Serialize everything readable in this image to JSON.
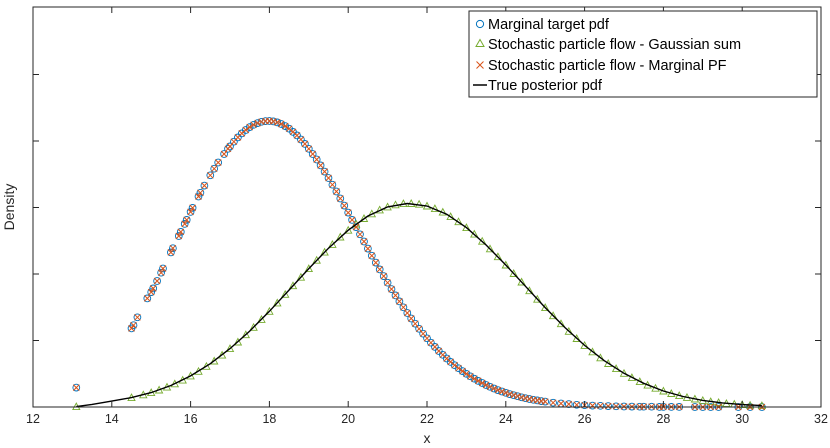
{
  "chart_data": {
    "type": "scatter",
    "title": "",
    "xlabel": "x",
    "ylabel": "Density",
    "xlim": [
      12,
      32
    ],
    "ylim": [
      0,
      0.305
    ],
    "xticks": [
      "12",
      "14",
      "16",
      "18",
      "20",
      "22",
      "24",
      "26",
      "28",
      "30",
      "32"
    ],
    "yticks_count": 6,
    "yticks_labeled": false,
    "box": true,
    "grid": false,
    "legend_position": "top-right",
    "series": [
      {
        "name": "Marginal target pdf",
        "marker": "circle",
        "color": "#0072BD",
        "x": [
          13.1,
          14.5,
          14.55,
          14.65,
          14.9,
          15.0,
          15.05,
          15.15,
          15.25,
          15.3,
          15.5,
          15.55,
          15.7,
          15.75,
          15.85,
          15.9,
          16.0,
          16.05,
          16.2,
          16.25,
          16.35,
          16.5,
          16.6,
          16.7,
          16.85,
          16.95,
          17.0,
          17.1,
          17.2,
          17.3,
          17.4,
          17.5,
          17.6,
          17.7,
          17.8,
          17.9,
          18.0,
          18.1,
          18.2,
          18.3,
          18.4,
          18.5,
          18.6,
          18.7,
          18.8,
          18.9,
          19.0,
          19.1,
          19.2,
          19.3,
          19.4,
          19.5,
          19.6,
          19.7,
          19.8,
          19.9,
          20.0,
          20.1,
          20.2,
          20.3,
          20.4,
          20.5,
          20.6,
          20.7,
          20.8,
          20.9,
          21.0,
          21.1,
          21.2,
          21.3,
          21.4,
          21.5,
          21.6,
          21.7,
          21.8,
          21.9,
          22.0,
          22.1,
          22.2,
          22.3,
          22.4,
          22.5,
          22.6,
          22.7,
          22.8,
          22.9,
          23.0,
          23.1,
          23.2,
          23.3,
          23.4,
          23.5,
          23.6,
          23.7,
          23.8,
          23.9,
          24.0,
          24.1,
          24.2,
          24.3,
          24.4,
          24.5,
          24.6,
          24.7,
          24.8,
          24.9,
          25.0,
          25.2,
          25.4,
          25.6,
          25.8,
          26.0,
          26.2,
          26.4,
          26.6,
          26.8,
          27.0,
          27.2,
          27.4,
          27.5,
          27.7,
          27.9,
          28.0,
          28.2,
          28.4,
          28.8,
          29.0,
          29.2,
          29.4,
          29.9,
          30.2,
          30.5
        ],
        "y": [
          0.0148,
          0.0599,
          0.0624,
          0.0684,
          0.0828,
          0.0876,
          0.0904,
          0.0961,
          0.1024,
          0.1056,
          0.1179,
          0.1211,
          0.1304,
          0.1335,
          0.1396,
          0.1427,
          0.1488,
          0.1518,
          0.1605,
          0.1633,
          0.1688,
          0.1767,
          0.1817,
          0.1864,
          0.1929,
          0.1969,
          0.1987,
          0.2023,
          0.2056,
          0.2086,
          0.2112,
          0.2134,
          0.2152,
          0.2165,
          0.2175,
          0.218,
          0.2181,
          0.2178,
          0.217,
          0.2158,
          0.2142,
          0.2122,
          0.2098,
          0.2071,
          0.204,
          0.2006,
          0.1969,
          0.1929,
          0.1887,
          0.1842,
          0.1795,
          0.1746,
          0.1695,
          0.1643,
          0.159,
          0.1536,
          0.1482,
          0.1427,
          0.1372,
          0.1317,
          0.1262,
          0.1208,
          0.1154,
          0.1101,
          0.1049,
          0.0998,
          0.0948,
          0.0899,
          0.0851,
          0.0805,
          0.076,
          0.0717,
          0.0675,
          0.0635,
          0.0596,
          0.0559,
          0.0524,
          0.049,
          0.0458,
          0.0427,
          0.0398,
          0.037,
          0.0344,
          0.0319,
          0.0296,
          0.0274,
          0.0253,
          0.0234,
          0.0216,
          0.0199,
          0.0183,
          0.0168,
          0.0154,
          0.0141,
          0.0129,
          0.0118,
          0.0108,
          0.0098,
          0.009,
          0.0082,
          0.0074,
          0.0067,
          0.0061,
          0.0055,
          0.005,
          0.0045,
          0.0041,
          0.0033,
          0.0027,
          0.0022,
          0.0017,
          0.0014,
          0.0011,
          0.0009,
          0.0007,
          0.0005,
          0.0004,
          0.0003,
          0.0002,
          0.0002,
          0.0002,
          0.0001,
          0.0001,
          0.0001,
          0.0001,
          0.0,
          0.0,
          0.0,
          0.0,
          0.0,
          0.0,
          0.0
        ]
      },
      {
        "name": "Stochastic particle flow - Gaussian sum",
        "marker": "triangle",
        "color": "#77AC30",
        "x": [
          13.1,
          14.5,
          14.8,
          15.0,
          15.2,
          15.4,
          15.6,
          15.8,
          16.0,
          16.2,
          16.4,
          16.6,
          16.8,
          17.0,
          17.2,
          17.4,
          17.6,
          17.8,
          18.0,
          18.2,
          18.4,
          18.6,
          18.8,
          19.0,
          19.2,
          19.4,
          19.6,
          19.8,
          20.0,
          20.2,
          20.4,
          20.6,
          20.8,
          21.0,
          21.2,
          21.4,
          21.6,
          21.8,
          22.0,
          22.2,
          22.4,
          22.6,
          22.8,
          23.0,
          23.2,
          23.4,
          23.6,
          23.8,
          24.0,
          24.2,
          24.4,
          24.6,
          24.8,
          25.0,
          25.2,
          25.4,
          25.6,
          25.8,
          26.0,
          26.2,
          26.4,
          26.6,
          26.8,
          27.0,
          27.2,
          27.4,
          27.6,
          27.8,
          28.0,
          28.2,
          28.4,
          28.6,
          28.8,
          29.0,
          29.2,
          29.4,
          29.6,
          29.8,
          30.0,
          30.2,
          30.5
        ],
        "y": [
          0.0003,
          0.0072,
          0.0093,
          0.011,
          0.013,
          0.0152,
          0.0177,
          0.0205,
          0.0237,
          0.0272,
          0.031,
          0.0351,
          0.0396,
          0.0445,
          0.0496,
          0.0551,
          0.0608,
          0.0668,
          0.073,
          0.0794,
          0.0859,
          0.0925,
          0.099,
          0.1055,
          0.1119,
          0.1181,
          0.124,
          0.1296,
          0.1348,
          0.1395,
          0.1437,
          0.1473,
          0.1503,
          0.1526,
          0.1542,
          0.1551,
          0.1552,
          0.1546,
          0.1533,
          0.1513,
          0.1486,
          0.1452,
          0.1413,
          0.1368,
          0.1318,
          0.1264,
          0.1206,
          0.1146,
          0.1083,
          0.1018,
          0.0953,
          0.0887,
          0.0822,
          0.0758,
          0.0696,
          0.0635,
          0.0577,
          0.0522,
          0.047,
          0.0421,
          0.0375,
          0.0332,
          0.0293,
          0.0257,
          0.0224,
          0.0194,
          0.0167,
          0.0143,
          0.0122,
          0.0103,
          0.0087,
          0.0073,
          0.0061,
          0.005,
          0.0041,
          0.0034,
          0.0027,
          0.0022,
          0.0018,
          0.0014,
          0.0011
        ]
      },
      {
        "name": "Stochastic particle flow - Marginal PF",
        "marker": "x",
        "color": "#D95319",
        "x": [
          13.1,
          14.5,
          14.55,
          14.65,
          14.9,
          15.0,
          15.05,
          15.15,
          15.25,
          15.3,
          15.5,
          15.55,
          15.7,
          15.75,
          15.85,
          15.9,
          16.0,
          16.05,
          16.2,
          16.25,
          16.35,
          16.5,
          16.6,
          16.7,
          16.85,
          16.95,
          17.0,
          17.1,
          17.2,
          17.3,
          17.4,
          17.5,
          17.6,
          17.7,
          17.8,
          17.9,
          18.0,
          18.1,
          18.2,
          18.3,
          18.4,
          18.5,
          18.6,
          18.7,
          18.8,
          18.9,
          19.0,
          19.1,
          19.2,
          19.3,
          19.4,
          19.5,
          19.6,
          19.7,
          19.8,
          19.9,
          20.0,
          20.1,
          20.2,
          20.3,
          20.4,
          20.5,
          20.6,
          20.7,
          20.8,
          20.9,
          21.0,
          21.1,
          21.2,
          21.3,
          21.4,
          21.5,
          21.6,
          21.7,
          21.8,
          21.9,
          22.0,
          22.1,
          22.2,
          22.3,
          22.4,
          22.5,
          22.6,
          22.7,
          22.8,
          22.9,
          23.0,
          23.1,
          23.2,
          23.3,
          23.4,
          23.5,
          23.6,
          23.7,
          23.8,
          23.9,
          24.0,
          24.1,
          24.2,
          24.3,
          24.4,
          24.5,
          24.6,
          24.7,
          24.8,
          24.9,
          25.0,
          25.2,
          25.4,
          25.6,
          25.8,
          26.0,
          26.2,
          26.4,
          26.6,
          26.8,
          27.0,
          27.2,
          27.4,
          27.5,
          27.7,
          27.9,
          28.0,
          28.2,
          28.4,
          28.8,
          29.0,
          29.2,
          29.4,
          29.9,
          30.2,
          30.5
        ],
        "y": [
          0.0148,
          0.0599,
          0.0624,
          0.0684,
          0.0828,
          0.0876,
          0.0904,
          0.0961,
          0.1024,
          0.1056,
          0.1179,
          0.1211,
          0.1304,
          0.1335,
          0.1396,
          0.1427,
          0.1488,
          0.1518,
          0.1605,
          0.1633,
          0.1688,
          0.1767,
          0.1817,
          0.1864,
          0.1929,
          0.1969,
          0.1987,
          0.2023,
          0.2056,
          0.2086,
          0.2112,
          0.2134,
          0.2152,
          0.2165,
          0.2175,
          0.218,
          0.2181,
          0.2178,
          0.217,
          0.2158,
          0.2142,
          0.2122,
          0.2098,
          0.2071,
          0.204,
          0.2006,
          0.1969,
          0.1929,
          0.1887,
          0.1842,
          0.1795,
          0.1746,
          0.1695,
          0.1643,
          0.159,
          0.1536,
          0.1482,
          0.1427,
          0.1372,
          0.1317,
          0.1262,
          0.1208,
          0.1154,
          0.1101,
          0.1049,
          0.0998,
          0.0948,
          0.0899,
          0.0851,
          0.0805,
          0.076,
          0.0717,
          0.0675,
          0.0635,
          0.0596,
          0.0559,
          0.0524,
          0.049,
          0.0458,
          0.0427,
          0.0398,
          0.037,
          0.0344,
          0.0319,
          0.0296,
          0.0274,
          0.0253,
          0.0234,
          0.0216,
          0.0199,
          0.0183,
          0.0168,
          0.0154,
          0.0141,
          0.0129,
          0.0118,
          0.0108,
          0.0098,
          0.009,
          0.0082,
          0.0074,
          0.0067,
          0.0061,
          0.0055,
          0.005,
          0.0045,
          0.0041,
          0.0033,
          0.0027,
          0.0022,
          0.0017,
          0.0014,
          0.0011,
          0.0009,
          0.0007,
          0.0005,
          0.0004,
          0.0003,
          0.0002,
          0.0002,
          0.0002,
          0.0001,
          0.0001,
          0.0001,
          0.0001,
          0.0,
          0.0,
          0.0,
          0.0,
          0.0,
          0.0,
          0.0
        ]
      },
      {
        "name": "True posterior pdf",
        "marker": "line",
        "color": "#000000",
        "x": [
          13.1,
          13.5,
          14.0,
          14.5,
          15.0,
          15.5,
          16.0,
          16.5,
          17.0,
          17.5,
          18.0,
          18.5,
          19.0,
          19.5,
          20.0,
          20.5,
          21.0,
          21.5,
          22.0,
          22.5,
          23.0,
          23.5,
          24.0,
          24.5,
          25.0,
          25.5,
          26.0,
          26.5,
          27.0,
          27.5,
          28.0,
          28.5,
          29.0,
          29.5,
          30.0,
          30.5
        ],
        "y": [
          0.0003,
          0.002,
          0.0045,
          0.0072,
          0.011,
          0.0164,
          0.0237,
          0.033,
          0.0445,
          0.0579,
          0.073,
          0.0892,
          0.1055,
          0.1211,
          0.1348,
          0.1456,
          0.1526,
          0.1552,
          0.1533,
          0.147,
          0.1368,
          0.1235,
          0.1083,
          0.092,
          0.0758,
          0.0606,
          0.047,
          0.0353,
          0.0257,
          0.0181,
          0.0122,
          0.008,
          0.005,
          0.0031,
          0.0018,
          0.0011
        ]
      }
    ]
  }
}
